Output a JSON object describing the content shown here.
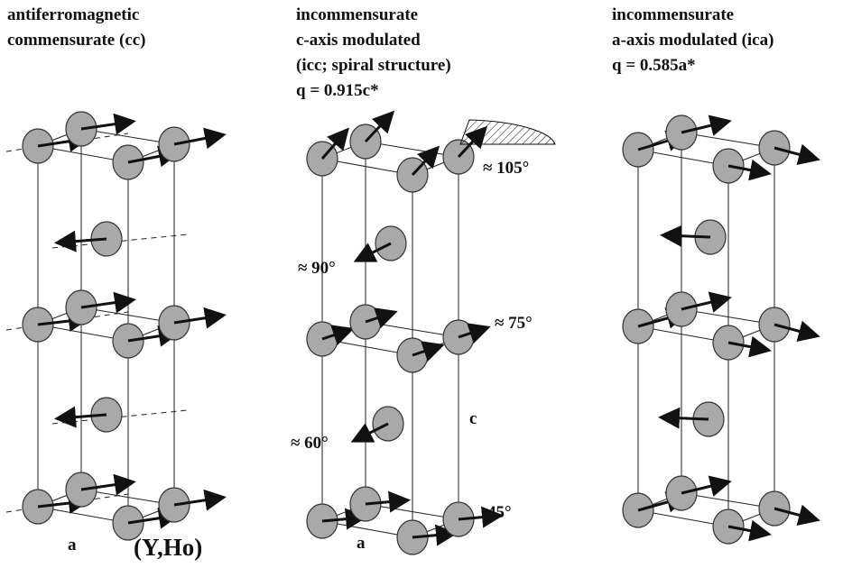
{
  "panels": [
    {
      "title_lines": [
        "antiferromagnetic",
        "commensurate (cc)"
      ],
      "labels": [
        "a",
        "(Y,Ho)"
      ]
    },
    {
      "title_lines": [
        "incommensurate",
        "c-axis modulated",
        "(icc; spiral structure)",
        "q = 0.915c*"
      ],
      "labels": [
        "≈ 105°",
        "≈ 90°",
        "≈ 75°",
        "≈ 60°",
        "45°",
        "c",
        "a"
      ]
    },
    {
      "title_lines": [
        "incommensurate",
        "a-axis modulated (ica)",
        "q = 0.585a*"
      ],
      "labels": []
    }
  ]
}
